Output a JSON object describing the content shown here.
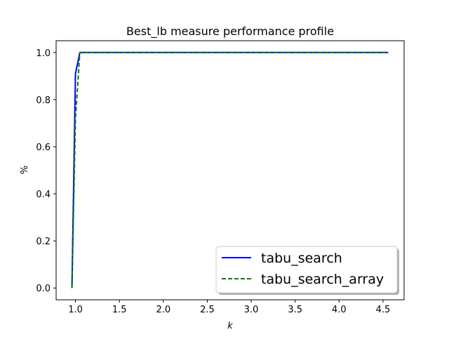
{
  "chart_data": {
    "type": "line",
    "title": "Best_lb measure performance profile",
    "xlabel": "k",
    "ylabel": "%",
    "xlim": [
      0.78,
      4.74
    ],
    "ylim": [
      -0.05,
      1.05
    ],
    "xticks": [
      1.0,
      1.5,
      2.0,
      2.5,
      3.0,
      3.5,
      4.0,
      4.5
    ],
    "xtick_labels": [
      "1.0",
      "1.5",
      "2.0",
      "2.5",
      "3.0",
      "3.5",
      "4.0",
      "4.5"
    ],
    "yticks": [
      0.0,
      0.2,
      0.4,
      0.6,
      0.8,
      1.0
    ],
    "ytick_labels": [
      "0.0",
      "0.2",
      "0.4",
      "0.6",
      "0.8",
      "1.0"
    ],
    "grid": false,
    "legend_position": "bottom-right",
    "series": [
      {
        "name": "tabu_search",
        "color": "#0000ff",
        "style": "solid",
        "x": [
          0.96,
          1.0,
          1.05,
          4.56
        ],
        "y": [
          0.0,
          0.91,
          1.0,
          1.0
        ]
      },
      {
        "name": "tabu_search_array",
        "color": "#008000",
        "style": "dashed",
        "x": [
          0.96,
          1.0,
          1.05,
          4.56
        ],
        "y": [
          0.0,
          0.72,
          1.0,
          1.0
        ]
      }
    ]
  }
}
